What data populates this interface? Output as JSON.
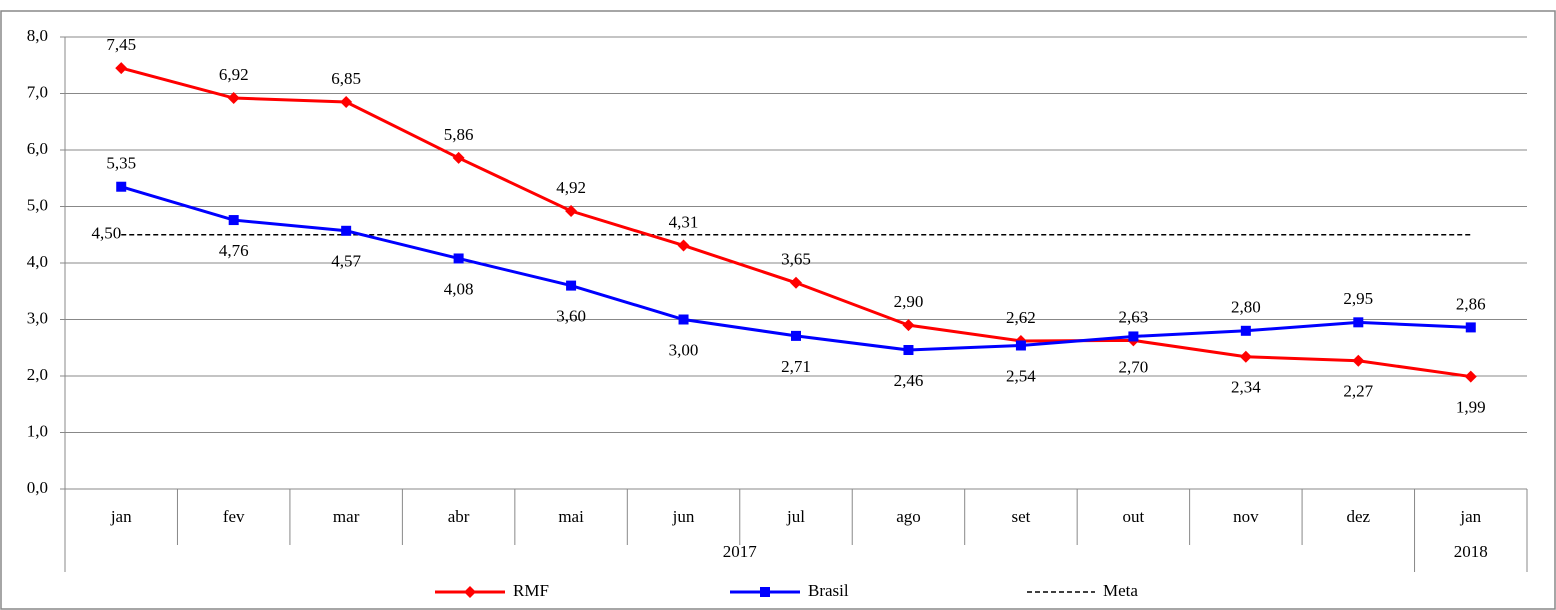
{
  "chart_data": {
    "type": "line",
    "categories": [
      "jan",
      "fev",
      "mar",
      "abr",
      "mai",
      "jun",
      "jul",
      "ago",
      "set",
      "out",
      "nov",
      "dez",
      "jan"
    ],
    "category_groups": [
      "2017",
      null,
      null,
      null,
      null,
      null,
      null,
      null,
      null,
      null,
      null,
      null,
      "2018"
    ],
    "series": [
      {
        "name": "RMF",
        "color": "#ff0000",
        "marker": "diamond",
        "values": [
          7.45,
          6.92,
          6.85,
          5.86,
          4.92,
          4.31,
          3.65,
          2.9,
          2.62,
          2.63,
          2.34,
          2.27,
          1.99
        ],
        "value_labels": [
          "7,45",
          "6,92",
          "6,85",
          "5,86",
          "4,92",
          "4,31",
          "3,65",
          "2,90",
          "2,62",
          "2,63",
          "2,34",
          "2,27",
          "1,99"
        ],
        "label_positions": [
          "above",
          "above",
          "above",
          "above",
          "above",
          "above",
          "above",
          "above",
          "above",
          "above",
          "below",
          "below",
          "below"
        ]
      },
      {
        "name": "Brasil",
        "color": "#0000ff",
        "marker": "square",
        "values": [
          5.35,
          4.76,
          4.57,
          4.08,
          3.6,
          3.0,
          2.71,
          2.46,
          2.54,
          2.7,
          2.8,
          2.95,
          2.86
        ],
        "value_labels": [
          "5,35",
          "4,76",
          "4,57",
          "4,08",
          "3,60",
          "3,00",
          "2,71",
          "2,46",
          "2,54",
          "2,70",
          "2,80",
          "2,95",
          "2,86"
        ],
        "label_positions": [
          "above",
          "below",
          "below",
          "below",
          "below",
          "below",
          "below",
          "below",
          "below",
          "below",
          "above",
          "above",
          "above"
        ]
      }
    ],
    "reference_line": {
      "name": "Meta",
      "value": 4.5,
      "label": "4,50",
      "color": "#000000"
    },
    "ylim": [
      0,
      8
    ],
    "yticks": [
      {
        "value": 0,
        "label": "0,0"
      },
      {
        "value": 1,
        "label": "1,0"
      },
      {
        "value": 2,
        "label": "2,0"
      },
      {
        "value": 3,
        "label": "3,0"
      },
      {
        "value": 4,
        "label": "4,0"
      },
      {
        "value": 5,
        "label": "5,0"
      },
      {
        "value": 6,
        "label": "6,0"
      },
      {
        "value": 7,
        "label": "7,0"
      },
      {
        "value": 8,
        "label": "8,0"
      }
    ],
    "grid": true,
    "legend": "bottom"
  }
}
